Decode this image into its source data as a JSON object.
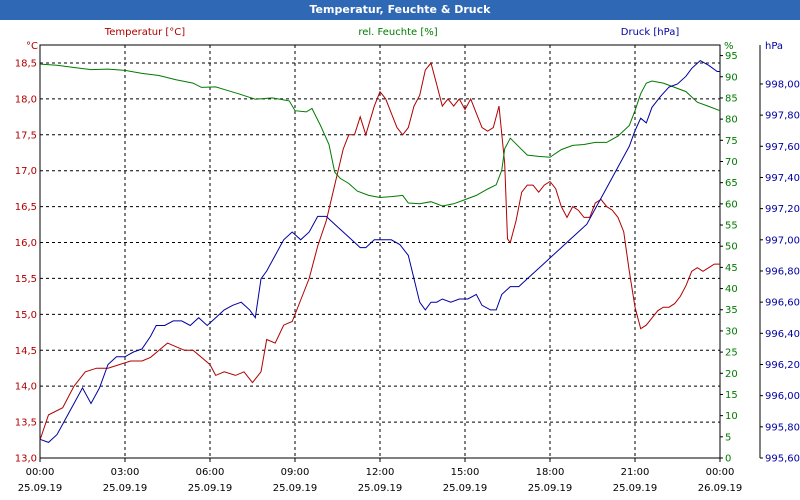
{
  "window": {
    "title": "Temperatur, Feuchte & Druck"
  },
  "chart_data": {
    "type": "line",
    "title": "Temperatur, Feuchte & Druck",
    "grid": true,
    "x_ticks": [
      {
        "time": "00:00",
        "date": "25.09.19"
      },
      {
        "time": "03:00",
        "date": "25.09.19"
      },
      {
        "time": "06:00",
        "date": "25.09.19"
      },
      {
        "time": "09:00",
        "date": "25.09.19"
      },
      {
        "time": "12:00",
        "date": "25.09.19"
      },
      {
        "time": "15:00",
        "date": "25.09.19"
      },
      {
        "time": "18:00",
        "date": "25.09.19"
      },
      {
        "time": "21:00",
        "date": "25.09.19"
      },
      {
        "time": "00:00",
        "date": "26.09.19"
      }
    ],
    "axes": {
      "temperature": {
        "label": "Temperatur [°C]",
        "unit": "°C",
        "range": [
          13.0,
          18.75
        ],
        "ticks": [
          "13,0",
          "13,5",
          "14,0",
          "14,5",
          "15,0",
          "15,5",
          "16,0",
          "16,5",
          "17,0",
          "17,5",
          "18,0",
          "18,5"
        ],
        "color": "#b00000"
      },
      "humidity": {
        "label": "rel. Feuchte [%]",
        "unit": "%",
        "range": [
          0,
          97.5
        ],
        "ticks": [
          "0",
          "5",
          "10",
          "15",
          "20",
          "25",
          "30",
          "35",
          "40",
          "45",
          "50",
          "55",
          "60",
          "65",
          "70",
          "75",
          "80",
          "85",
          "90",
          "95"
        ],
        "color": "#007a00"
      },
      "pressure": {
        "label": "Druck [hPa]",
        "unit": "hPa",
        "range": [
          995.6,
          998.25
        ],
        "ticks": [
          "995,60",
          "995,80",
          "996,00",
          "996,20",
          "996,40",
          "996,60",
          "996,80",
          "997,00",
          "997,20",
          "997,40",
          "997,60",
          "997,80",
          "998,00"
        ],
        "color": "#0000a0"
      }
    },
    "series": [
      {
        "name": "Temperatur [°C]",
        "axis": "temperature",
        "color": "#b00000",
        "points": [
          [
            0,
            13.25
          ],
          [
            0.3,
            13.6
          ],
          [
            0.8,
            13.7
          ],
          [
            1.2,
            14.0
          ],
          [
            1.6,
            14.2
          ],
          [
            2.0,
            14.25
          ],
          [
            2.4,
            14.25
          ],
          [
            2.8,
            14.3
          ],
          [
            3.2,
            14.35
          ],
          [
            3.6,
            14.35
          ],
          [
            3.9,
            14.4
          ],
          [
            4.2,
            14.5
          ],
          [
            4.5,
            14.6
          ],
          [
            4.8,
            14.55
          ],
          [
            5.1,
            14.5
          ],
          [
            5.4,
            14.5
          ],
          [
            5.7,
            14.4
          ],
          [
            6.0,
            14.3
          ],
          [
            6.2,
            14.15
          ],
          [
            6.5,
            14.2
          ],
          [
            6.9,
            14.15
          ],
          [
            7.2,
            14.2
          ],
          [
            7.5,
            14.05
          ],
          [
            7.8,
            14.2
          ],
          [
            8.0,
            14.65
          ],
          [
            8.3,
            14.6
          ],
          [
            8.6,
            14.85
          ],
          [
            8.9,
            14.9
          ],
          [
            9.2,
            15.2
          ],
          [
            9.5,
            15.5
          ],
          [
            9.8,
            15.95
          ],
          [
            10.1,
            16.3
          ],
          [
            10.4,
            16.8
          ],
          [
            10.7,
            17.3
          ],
          [
            10.9,
            17.5
          ],
          [
            11.1,
            17.5
          ],
          [
            11.3,
            17.75
          ],
          [
            11.5,
            17.5
          ],
          [
            11.8,
            17.9
          ],
          [
            12.0,
            18.1
          ],
          [
            12.2,
            18.0
          ],
          [
            12.4,
            17.8
          ],
          [
            12.6,
            17.6
          ],
          [
            12.8,
            17.5
          ],
          [
            13.0,
            17.6
          ],
          [
            13.2,
            17.9
          ],
          [
            13.4,
            18.05
          ],
          [
            13.6,
            18.4
          ],
          [
            13.8,
            18.5
          ],
          [
            14.0,
            18.2
          ],
          [
            14.2,
            17.9
          ],
          [
            14.4,
            18.0
          ],
          [
            14.6,
            17.9
          ],
          [
            14.8,
            18.0
          ],
          [
            15.0,
            17.85
          ],
          [
            15.2,
            18.0
          ],
          [
            15.4,
            17.8
          ],
          [
            15.6,
            17.6
          ],
          [
            15.8,
            17.55
          ],
          [
            16.0,
            17.6
          ],
          [
            16.2,
            17.9
          ],
          [
            16.4,
            17.1
          ],
          [
            16.5,
            16.05
          ],
          [
            16.6,
            16.0
          ],
          [
            16.8,
            16.3
          ],
          [
            17.0,
            16.7
          ],
          [
            17.2,
            16.8
          ],
          [
            17.4,
            16.8
          ],
          [
            17.6,
            16.7
          ],
          [
            17.8,
            16.8
          ],
          [
            18.0,
            16.85
          ],
          [
            18.2,
            16.75
          ],
          [
            18.4,
            16.5
          ],
          [
            18.6,
            16.35
          ],
          [
            18.8,
            16.5
          ],
          [
            19.0,
            16.45
          ],
          [
            19.2,
            16.35
          ],
          [
            19.4,
            16.35
          ],
          [
            19.6,
            16.55
          ],
          [
            19.8,
            16.6
          ],
          [
            20.0,
            16.5
          ],
          [
            20.2,
            16.45
          ],
          [
            20.4,
            16.35
          ],
          [
            20.6,
            16.15
          ],
          [
            20.8,
            15.6
          ],
          [
            21.0,
            15.1
          ],
          [
            21.2,
            14.8
          ],
          [
            21.4,
            14.85
          ],
          [
            21.6,
            14.95
          ],
          [
            21.8,
            15.05
          ],
          [
            22.0,
            15.1
          ],
          [
            22.2,
            15.1
          ],
          [
            22.4,
            15.15
          ],
          [
            22.6,
            15.25
          ],
          [
            22.8,
            15.4
          ],
          [
            23.0,
            15.6
          ],
          [
            23.2,
            15.65
          ],
          [
            23.4,
            15.6
          ],
          [
            23.6,
            15.65
          ],
          [
            23.8,
            15.7
          ],
          [
            24.0,
            15.7
          ]
        ]
      },
      {
        "name": "rel. Feuchte [%]",
        "axis": "humidity",
        "color": "#007a00",
        "points": [
          [
            0,
            93
          ],
          [
            0.6,
            92.7
          ],
          [
            1.2,
            92.2
          ],
          [
            1.8,
            91.7
          ],
          [
            2.4,
            91.8
          ],
          [
            3.0,
            91.5
          ],
          [
            3.6,
            90.8
          ],
          [
            4.2,
            90.3
          ],
          [
            4.8,
            89.3
          ],
          [
            5.4,
            88.5
          ],
          [
            5.7,
            87.5
          ],
          [
            6.2,
            87.6
          ],
          [
            6.6,
            86.8
          ],
          [
            7.0,
            86
          ],
          [
            7.6,
            84.7
          ],
          [
            8.2,
            85
          ],
          [
            8.8,
            84.3
          ],
          [
            9.0,
            82
          ],
          [
            9.4,
            81.7
          ],
          [
            9.6,
            82.5
          ],
          [
            9.9,
            78.5
          ],
          [
            10.2,
            74
          ],
          [
            10.4,
            67.5
          ],
          [
            10.6,
            66
          ],
          [
            10.9,
            64.8
          ],
          [
            11.2,
            63
          ],
          [
            11.6,
            62
          ],
          [
            12.0,
            61.5
          ],
          [
            12.4,
            61.7
          ],
          [
            12.8,
            62
          ],
          [
            13.0,
            60.2
          ],
          [
            13.4,
            60
          ],
          [
            13.8,
            60.5
          ],
          [
            14.2,
            59.5
          ],
          [
            14.6,
            60
          ],
          [
            15.0,
            61
          ],
          [
            15.4,
            62
          ],
          [
            15.8,
            63.5
          ],
          [
            16.1,
            64.5
          ],
          [
            16.3,
            68
          ],
          [
            16.4,
            73
          ],
          [
            16.6,
            75.5
          ],
          [
            16.9,
            73.5
          ],
          [
            17.2,
            71.5
          ],
          [
            17.6,
            71.2
          ],
          [
            18.0,
            71
          ],
          [
            18.4,
            72.8
          ],
          [
            18.8,
            73.8
          ],
          [
            19.2,
            74
          ],
          [
            19.6,
            74.5
          ],
          [
            20.0,
            74.5
          ],
          [
            20.4,
            76
          ],
          [
            20.8,
            78.5
          ],
          [
            21.0,
            82
          ],
          [
            21.2,
            86
          ],
          [
            21.4,
            88.5
          ],
          [
            21.6,
            89
          ],
          [
            22.0,
            88.5
          ],
          [
            22.4,
            87.5
          ],
          [
            22.8,
            86.5
          ],
          [
            23.2,
            84
          ],
          [
            23.6,
            83
          ],
          [
            24.0,
            82
          ]
        ]
      },
      {
        "name": "Druck [hPa]",
        "axis": "pressure",
        "color": "#0000a0",
        "points": [
          [
            0,
            995.72
          ],
          [
            0.3,
            995.7
          ],
          [
            0.6,
            995.75
          ],
          [
            0.9,
            995.85
          ],
          [
            1.2,
            995.95
          ],
          [
            1.5,
            996.05
          ],
          [
            1.8,
            995.95
          ],
          [
            2.1,
            996.05
          ],
          [
            2.4,
            996.2
          ],
          [
            2.7,
            996.25
          ],
          [
            3.0,
            996.25
          ],
          [
            3.3,
            996.28
          ],
          [
            3.6,
            996.3
          ],
          [
            3.9,
            996.38
          ],
          [
            4.1,
            996.45
          ],
          [
            4.4,
            996.45
          ],
          [
            4.7,
            996.48
          ],
          [
            5.0,
            996.48
          ],
          [
            5.3,
            996.45
          ],
          [
            5.6,
            996.5
          ],
          [
            5.9,
            996.45
          ],
          [
            6.2,
            996.5
          ],
          [
            6.5,
            996.55
          ],
          [
            6.8,
            996.58
          ],
          [
            7.1,
            996.6
          ],
          [
            7.4,
            996.55
          ],
          [
            7.6,
            996.5
          ],
          [
            7.8,
            996.75
          ],
          [
            8.0,
            996.8
          ],
          [
            8.3,
            996.9
          ],
          [
            8.6,
            997.0
          ],
          [
            8.9,
            997.05
          ],
          [
            9.2,
            997.0
          ],
          [
            9.5,
            997.05
          ],
          [
            9.8,
            997.15
          ],
          [
            10.1,
            997.15
          ],
          [
            10.4,
            997.1
          ],
          [
            10.7,
            997.05
          ],
          [
            11.0,
            997.0
          ],
          [
            11.3,
            996.95
          ],
          [
            11.5,
            996.95
          ],
          [
            11.8,
            997.0
          ],
          [
            12.1,
            997.0
          ],
          [
            12.4,
            997.0
          ],
          [
            12.7,
            996.97
          ],
          [
            13.0,
            996.9
          ],
          [
            13.2,
            996.75
          ],
          [
            13.4,
            996.6
          ],
          [
            13.6,
            996.55
          ],
          [
            13.8,
            996.6
          ],
          [
            14.0,
            996.6
          ],
          [
            14.2,
            996.62
          ],
          [
            14.5,
            996.6
          ],
          [
            14.8,
            996.62
          ],
          [
            15.1,
            996.62
          ],
          [
            15.4,
            996.65
          ],
          [
            15.6,
            996.58
          ],
          [
            15.9,
            996.55
          ],
          [
            16.1,
            996.55
          ],
          [
            16.3,
            996.65
          ],
          [
            16.6,
            996.7
          ],
          [
            16.9,
            996.7
          ],
          [
            17.2,
            996.75
          ],
          [
            17.5,
            996.8
          ],
          [
            17.8,
            996.85
          ],
          [
            18.1,
            996.9
          ],
          [
            18.4,
            996.95
          ],
          [
            18.7,
            997.0
          ],
          [
            19.0,
            997.05
          ],
          [
            19.3,
            997.1
          ],
          [
            19.6,
            997.2
          ],
          [
            19.9,
            997.3
          ],
          [
            20.2,
            997.4
          ],
          [
            20.5,
            997.5
          ],
          [
            20.8,
            997.6
          ],
          [
            21.0,
            997.7
          ],
          [
            21.2,
            997.78
          ],
          [
            21.4,
            997.75
          ],
          [
            21.6,
            997.85
          ],
          [
            21.9,
            997.92
          ],
          [
            22.2,
            997.98
          ],
          [
            22.5,
            998.0
          ],
          [
            22.8,
            998.05
          ],
          [
            23.0,
            998.1
          ],
          [
            23.3,
            998.15
          ],
          [
            23.6,
            998.12
          ],
          [
            23.9,
            998.08
          ],
          [
            24.0,
            998.08
          ]
        ]
      }
    ]
  }
}
